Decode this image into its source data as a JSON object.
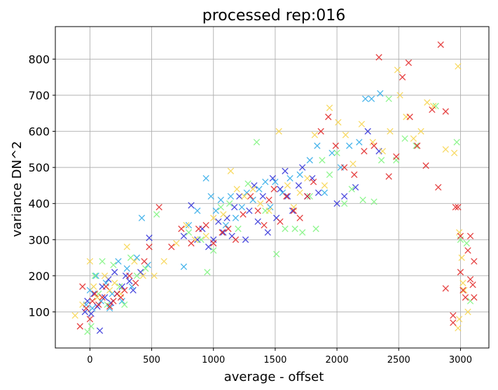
{
  "chart_data": {
    "type": "scatter",
    "title": "processed rep:016",
    "xlabel": "average - offset",
    "ylabel": "variance DN^2",
    "xlim": [
      -280,
      3230
    ],
    "ylim": [
      0,
      890
    ],
    "xticks": [
      0,
      500,
      1000,
      1500,
      2000,
      2500,
      3000
    ],
    "yticks": [
      100,
      200,
      300,
      400,
      500,
      600,
      700,
      800
    ],
    "grid": true,
    "marker": "x",
    "series": [
      {
        "color": "#2a2ad8",
        "points": [
          [
            -40,
            100
          ],
          [
            -20,
            130
          ],
          [
            10,
            95
          ],
          [
            30,
            150
          ],
          [
            60,
            115
          ],
          [
            80,
            48
          ],
          [
            100,
            170
          ],
          [
            120,
            140
          ],
          [
            150,
            190
          ],
          [
            170,
            125
          ],
          [
            200,
            210
          ],
          [
            220,
            150
          ],
          [
            260,
            170
          ],
          [
            290,
            200
          ],
          [
            320,
            185
          ],
          [
            350,
            160
          ],
          [
            410,
            210
          ],
          [
            480,
            305
          ],
          [
            760,
            310
          ],
          [
            820,
            395
          ],
          [
            870,
            300
          ],
          [
            910,
            330
          ],
          [
            960,
            280
          ],
          [
            1000,
            300
          ],
          [
            1040,
            350
          ],
          [
            1080,
            320
          ],
          [
            1110,
            360
          ],
          [
            1150,
            310
          ],
          [
            1170,
            390
          ],
          [
            1210,
            420
          ],
          [
            1260,
            300
          ],
          [
            1290,
            380
          ],
          [
            1330,
            450
          ],
          [
            1360,
            350
          ],
          [
            1400,
            420
          ],
          [
            1440,
            320
          ],
          [
            1480,
            470
          ],
          [
            1510,
            360
          ],
          [
            1540,
            440
          ],
          [
            1580,
            490
          ],
          [
            1600,
            420
          ],
          [
            1640,
            380
          ],
          [
            1690,
            450
          ],
          [
            1720,
            500
          ],
          [
            1760,
            420
          ],
          [
            1800,
            470
          ],
          [
            1850,
            430
          ],
          [
            2000,
            400
          ],
          [
            2060,
            420
          ],
          [
            2150,
            445
          ],
          [
            2250,
            600
          ],
          [
            2340,
            545
          ]
        ]
      },
      {
        "color": "#2aa8e8",
        "points": [
          [
            -30,
            120
          ],
          [
            0,
            160
          ],
          [
            20,
            110
          ],
          [
            50,
            200
          ],
          [
            90,
            130
          ],
          [
            130,
            180
          ],
          [
            160,
            110
          ],
          [
            180,
            150
          ],
          [
            230,
            240
          ],
          [
            260,
            130
          ],
          [
            300,
            220
          ],
          [
            340,
            170
          ],
          [
            380,
            250
          ],
          [
            420,
            360
          ],
          [
            470,
            230
          ],
          [
            760,
            225
          ],
          [
            800,
            340
          ],
          [
            870,
            380
          ],
          [
            940,
            470
          ],
          [
            980,
            420
          ],
          [
            1020,
            380
          ],
          [
            1060,
            410
          ],
          [
            1100,
            340
          ],
          [
            1140,
            420
          ],
          [
            1180,
            360
          ],
          [
            1230,
            390
          ],
          [
            1270,
            430
          ],
          [
            1320,
            410
          ],
          [
            1370,
            440
          ],
          [
            1420,
            460
          ],
          [
            1460,
            390
          ],
          [
            1500,
            460
          ],
          [
            1560,
            430
          ],
          [
            1620,
            470
          ],
          [
            1700,
            480
          ],
          [
            1780,
            520
          ],
          [
            1840,
            560
          ],
          [
            1900,
            430
          ],
          [
            1960,
            540
          ],
          [
            2030,
            500
          ],
          [
            2100,
            560
          ],
          [
            2180,
            570
          ],
          [
            2230,
            690
          ],
          [
            2280,
            690
          ],
          [
            2350,
            705
          ]
        ]
      },
      {
        "color": "#7cf57c",
        "points": [
          [
            -20,
            45
          ],
          [
            10,
            60
          ],
          [
            40,
            200
          ],
          [
            70,
            150
          ],
          [
            100,
            240
          ],
          [
            140,
            120
          ],
          [
            190,
            230
          ],
          [
            240,
            170
          ],
          [
            280,
            120
          ],
          [
            330,
            250
          ],
          [
            380,
            200
          ],
          [
            450,
            220
          ],
          [
            540,
            370
          ],
          [
            800,
            320
          ],
          [
            900,
            300
          ],
          [
            950,
            210
          ],
          [
            1000,
            270
          ],
          [
            1060,
            390
          ],
          [
            1130,
            400
          ],
          [
            1200,
            330
          ],
          [
            1280,
            455
          ],
          [
            1350,
            570
          ],
          [
            1420,
            380
          ],
          [
            1510,
            260
          ],
          [
            1580,
            330
          ],
          [
            1660,
            330
          ],
          [
            1720,
            320
          ],
          [
            1780,
            420
          ],
          [
            1830,
            330
          ],
          [
            1880,
            520
          ],
          [
            1940,
            480
          ],
          [
            2000,
            540
          ],
          [
            2060,
            400
          ],
          [
            2120,
            440
          ],
          [
            2210,
            410
          ],
          [
            2300,
            405
          ],
          [
            2360,
            520
          ],
          [
            2420,
            690
          ],
          [
            2480,
            520
          ],
          [
            2550,
            580
          ],
          [
            2640,
            560
          ],
          [
            2800,
            670
          ],
          [
            2970,
            570
          ],
          [
            3000,
            300
          ],
          [
            3050,
            290
          ],
          [
            3080,
            130
          ]
        ]
      },
      {
        "color": "#f7d44a",
        "points": [
          [
            -120,
            90
          ],
          [
            -60,
            120
          ],
          [
            0,
            240
          ],
          [
            30,
            170
          ],
          [
            60,
            140
          ],
          [
            120,
            200
          ],
          [
            160,
            160
          ],
          [
            200,
            180
          ],
          [
            250,
            150
          ],
          [
            300,
            280
          ],
          [
            360,
            240
          ],
          [
            430,
            200
          ],
          [
            520,
            200
          ],
          [
            600,
            240
          ],
          [
            700,
            290
          ],
          [
            780,
            340
          ],
          [
            850,
            300
          ],
          [
            940,
            310
          ],
          [
            1000,
            360
          ],
          [
            1080,
            370
          ],
          [
            1140,
            490
          ],
          [
            1190,
            440
          ],
          [
            1250,
            420
          ],
          [
            1320,
            440
          ],
          [
            1380,
            400
          ],
          [
            1450,
            380
          ],
          [
            1530,
            600
          ],
          [
            1600,
            450
          ],
          [
            1650,
            390
          ],
          [
            1700,
            430
          ],
          [
            1760,
            470
          ],
          [
            1820,
            590
          ],
          [
            1900,
            450
          ],
          [
            1940,
            665
          ],
          [
            2010,
            625
          ],
          [
            2070,
            590
          ],
          [
            2130,
            510
          ],
          [
            2200,
            620
          ],
          [
            2290,
            570
          ],
          [
            2370,
            545
          ],
          [
            2430,
            600
          ],
          [
            2490,
            770
          ],
          [
            2510,
            700
          ],
          [
            2560,
            640
          ],
          [
            2620,
            580
          ],
          [
            2680,
            600
          ],
          [
            2730,
            680
          ],
          [
            2780,
            670
          ],
          [
            2880,
            550
          ],
          [
            2950,
            540
          ],
          [
            2980,
            780
          ],
          [
            2990,
            320
          ],
          [
            3010,
            250
          ],
          [
            3020,
            180
          ],
          [
            3030,
            160
          ],
          [
            3060,
            100
          ],
          [
            2980,
            55
          ],
          [
            2990,
            80
          ]
        ]
      },
      {
        "color": "#e02020",
        "points": [
          [
            -80,
            60
          ],
          [
            -60,
            170
          ],
          [
            -30,
            110
          ],
          [
            0,
            80
          ],
          [
            20,
            130
          ],
          [
            40,
            150
          ],
          [
            70,
            120
          ],
          [
            100,
            140
          ],
          [
            130,
            170
          ],
          [
            160,
            115
          ],
          [
            190,
            130
          ],
          [
            220,
            150
          ],
          [
            250,
            140
          ],
          [
            280,
            160
          ],
          [
            320,
            200
          ],
          [
            370,
            180
          ],
          [
            440,
            240
          ],
          [
            480,
            280
          ],
          [
            560,
            390
          ],
          [
            660,
            280
          ],
          [
            740,
            330
          ],
          [
            820,
            290
          ],
          [
            880,
            330
          ],
          [
            940,
            340
          ],
          [
            1000,
            290
          ],
          [
            1070,
            320
          ],
          [
            1120,
            330
          ],
          [
            1180,
            300
          ],
          [
            1240,
            370
          ],
          [
            1300,
            420
          ],
          [
            1360,
            380
          ],
          [
            1410,
            340
          ],
          [
            1450,
            410
          ],
          [
            1490,
            440
          ],
          [
            1540,
            350
          ],
          [
            1590,
            420
          ],
          [
            1650,
            380
          ],
          [
            1700,
            360
          ],
          [
            1760,
            420
          ],
          [
            1810,
            460
          ],
          [
            1870,
            600
          ],
          [
            1930,
            640
          ],
          [
            1990,
            560
          ],
          [
            2060,
            500
          ],
          [
            2140,
            480
          ],
          [
            2220,
            545
          ],
          [
            2300,
            560
          ],
          [
            2340,
            805
          ],
          [
            2420,
            475
          ],
          [
            2480,
            530
          ],
          [
            2530,
            750
          ],
          [
            2580,
            790
          ],
          [
            2590,
            640
          ],
          [
            2650,
            560
          ],
          [
            2720,
            505
          ],
          [
            2770,
            660
          ],
          [
            2820,
            445
          ],
          [
            2840,
            840
          ],
          [
            2880,
            165
          ],
          [
            2880,
            655
          ],
          [
            2940,
            90
          ],
          [
            2940,
            70
          ],
          [
            2960,
            390
          ],
          [
            2980,
            390
          ],
          [
            3000,
            310
          ],
          [
            3000,
            210
          ],
          [
            3020,
            160
          ],
          [
            3040,
            140
          ],
          [
            3080,
            310
          ],
          [
            3080,
            190
          ],
          [
            3100,
            175
          ],
          [
            3110,
            140
          ],
          [
            3110,
            240
          ],
          [
            3060,
            270
          ]
        ]
      }
    ]
  }
}
